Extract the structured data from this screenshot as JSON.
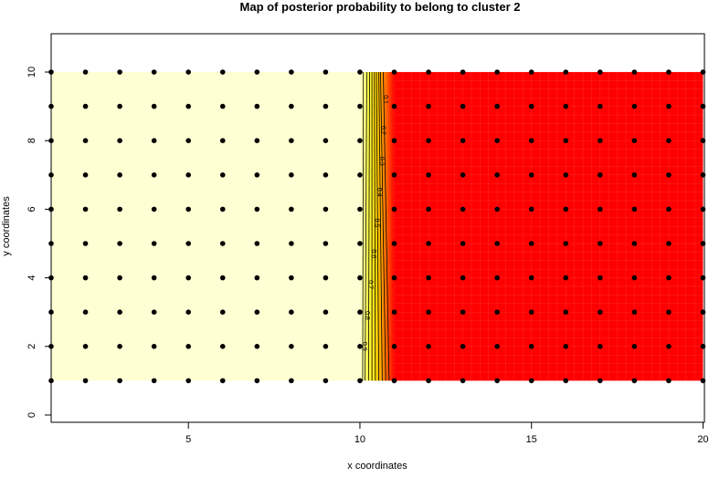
{
  "chart_data": {
    "type": "heatmap",
    "title": "Map of posterior probability to belong to cluster  2",
    "xlabel": "x coordinates",
    "ylabel": "y coordinates",
    "xlim": [
      1,
      20
    ],
    "ylim": [
      -0.2,
      11.1
    ],
    "xticks": [
      5,
      10,
      15,
      20
    ],
    "yticks": [
      0,
      2,
      4,
      6,
      8,
      10
    ],
    "grid": false,
    "points": {
      "x": [
        1,
        2,
        3,
        4,
        5,
        6,
        7,
        8,
        9,
        10,
        11,
        12,
        13,
        14,
        15,
        16,
        17,
        18,
        19,
        20
      ],
      "y": [
        1,
        2,
        3,
        4,
        5,
        6,
        7,
        8,
        9,
        10
      ]
    },
    "regions": {
      "low_x_color": "#FFFFD4",
      "high_x_color": "#FF0000",
      "transition": [
        10,
        11
      ]
    },
    "contours": [
      {
        "level": 0.9,
        "label": "0.9",
        "x_at_y1": 10.08,
        "x_at_y10": 10.1
      },
      {
        "level": 0.8,
        "label": "0.8",
        "x_at_y1": 10.15,
        "x_at_y10": 10.2
      },
      {
        "level": 0.7,
        "label": "0.7",
        "x_at_y1": 10.25,
        "x_at_y10": 10.28
      },
      {
        "level": 0.6,
        "label": "0.6",
        "x_at_y1": 10.35,
        "x_at_y10": 10.35
      },
      {
        "level": 0.5,
        "label": "0.5",
        "x_at_y1": 10.45,
        "x_at_y10": 10.42
      },
      {
        "level": 0.4,
        "label": "0.4",
        "x_at_y1": 10.55,
        "x_at_y10": 10.48
      },
      {
        "level": 0.3,
        "label": "0.3",
        "x_at_y1": 10.65,
        "x_at_y10": 10.55
      },
      {
        "level": 0.2,
        "label": "0.2",
        "x_at_y1": 10.75,
        "x_at_y10": 10.6
      },
      {
        "level": 0.1,
        "label": "0.1",
        "x_at_y1": 10.85,
        "x_at_y10": 10.68
      }
    ]
  }
}
